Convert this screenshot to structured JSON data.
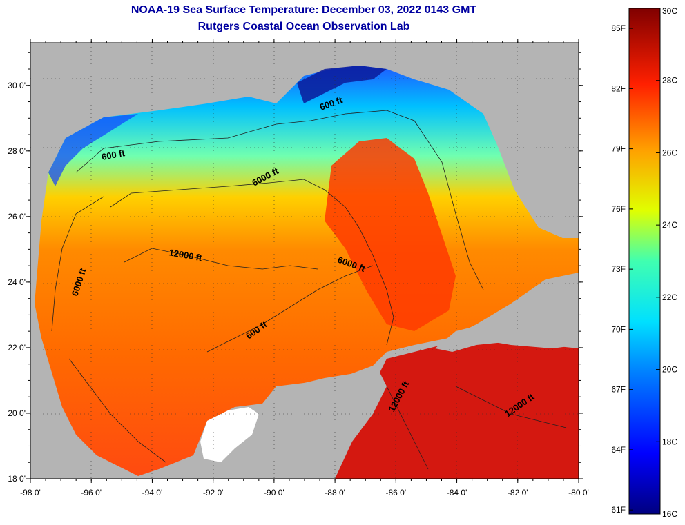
{
  "title": {
    "line1": "NOAA-19 Sea Surface Temperature:  December 03, 2022 0143 GMT",
    "line2": "Rutgers Coastal Ocean Observation Lab"
  },
  "map": {
    "extent": {
      "lon_min": -98,
      "lon_max": -80,
      "lat_min": 18,
      "lat_max": 31.3
    },
    "lon_ticks": [
      {
        "value": -98,
        "label": "-98 0'"
      },
      {
        "value": -96,
        "label": "-96 0'"
      },
      {
        "value": -94,
        "label": "-94 0'"
      },
      {
        "value": -92,
        "label": "-92 0'"
      },
      {
        "value": -90,
        "label": "-90 0'"
      },
      {
        "value": -88,
        "label": "-88 0'"
      },
      {
        "value": -86,
        "label": "-86 0'"
      },
      {
        "value": -84,
        "label": "-84 0'"
      },
      {
        "value": -82,
        "label": "-82 0'"
      },
      {
        "value": -80,
        "label": "-80 0'"
      }
    ],
    "lat_ticks": [
      {
        "value": 18,
        "label": "18 0'"
      },
      {
        "value": 20,
        "label": "20 0'"
      },
      {
        "value": 22,
        "label": "22 0'"
      },
      {
        "value": 24,
        "label": "24 0'"
      },
      {
        "value": 26,
        "label": "26 0'"
      },
      {
        "value": 28,
        "label": "28 0'"
      },
      {
        "value": 30,
        "label": "30 0'"
      }
    ],
    "contour_labels": [
      {
        "text": "600 ft"
      },
      {
        "text": "600 ft"
      },
      {
        "text": "6000 ft"
      },
      {
        "text": "12000 ft"
      },
      {
        "text": "6000 ft"
      },
      {
        "text": "6000 ft"
      },
      {
        "text": "600 ft"
      },
      {
        "text": "12000 ft"
      },
      {
        "text": "12000 ft"
      }
    ],
    "colors": {
      "land": "#b4b4b4",
      "cloud": "#ffffff",
      "cold": "#0a1a9a",
      "warm": "#e62a10",
      "hot": "#c41010"
    }
  },
  "colorbar": {
    "celsius_ticks": [
      {
        "value": 30,
        "label": "30C"
      },
      {
        "value": 28,
        "label": "28C"
      },
      {
        "value": 26,
        "label": "26C"
      },
      {
        "value": 24,
        "label": "24C"
      },
      {
        "value": 22,
        "label": "22C"
      },
      {
        "value": 20,
        "label": "20C"
      },
      {
        "value": 18,
        "label": "18C"
      },
      {
        "value": 16,
        "label": "16C"
      }
    ],
    "fahrenheit_ticks": [
      {
        "value": 85,
        "label": "85F"
      },
      {
        "value": 82,
        "label": "82F"
      },
      {
        "value": 79,
        "label": "79F"
      },
      {
        "value": 76,
        "label": "76F"
      },
      {
        "value": 73,
        "label": "73F"
      },
      {
        "value": 70,
        "label": "70F"
      },
      {
        "value": 67,
        "label": "67F"
      },
      {
        "value": 64,
        "label": "64F"
      },
      {
        "value": 61,
        "label": "61F"
      }
    ],
    "range_c": [
      16,
      30
    ]
  }
}
